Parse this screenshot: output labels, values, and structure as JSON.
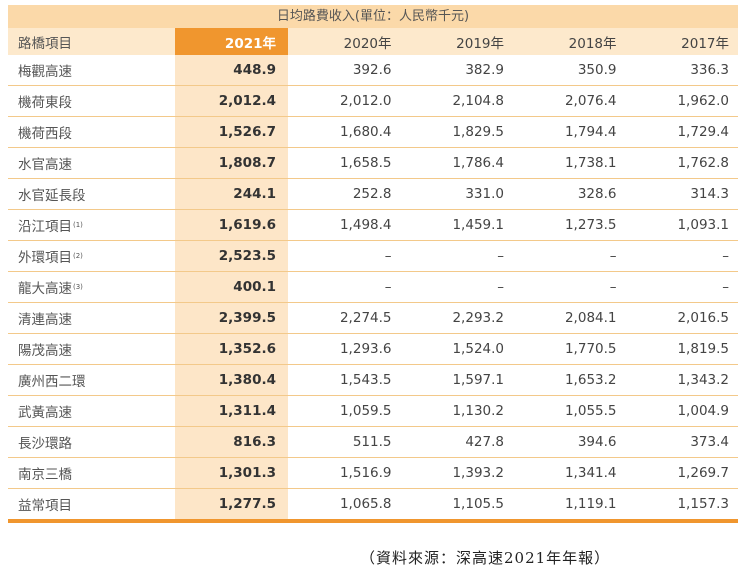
{
  "table": {
    "title": "日均路費收入(單位：人民幣千元)",
    "headers": [
      "路橋項目",
      "2021年",
      "2020年",
      "2019年",
      "2018年",
      "2017年"
    ],
    "rows": [
      {
        "name": "梅觀高速",
        "note": "",
        "values": [
          "448.9",
          "392.6",
          "382.9",
          "350.9",
          "336.3"
        ]
      },
      {
        "name": "機荷東段",
        "note": "",
        "values": [
          "2,012.4",
          "2,012.0",
          "2,104.8",
          "2,076.4",
          "1,962.0"
        ]
      },
      {
        "name": "機荷西段",
        "note": "",
        "values": [
          "1,526.7",
          "1,680.4",
          "1,829.5",
          "1,794.4",
          "1,729.4"
        ]
      },
      {
        "name": "水官高速",
        "note": "",
        "values": [
          "1,808.7",
          "1,658.5",
          "1,786.4",
          "1,738.1",
          "1,762.8"
        ]
      },
      {
        "name": "水官延長段",
        "note": "",
        "values": [
          "244.1",
          "252.8",
          "331.0",
          "328.6",
          "314.3"
        ]
      },
      {
        "name": "沿江項目",
        "note": "(1)",
        "values": [
          "1,619.6",
          "1,498.4",
          "1,459.1",
          "1,273.5",
          "1,093.1"
        ]
      },
      {
        "name": "外環項目",
        "note": "(2)",
        "values": [
          "2,523.5",
          "–",
          "–",
          "–",
          "–"
        ]
      },
      {
        "name": "龍大高速",
        "note": "(3)",
        "values": [
          "400.1",
          "–",
          "–",
          "–",
          "–"
        ]
      },
      {
        "name": "清連高速",
        "note": "",
        "values": [
          "2,399.5",
          "2,274.5",
          "2,293.2",
          "2,084.1",
          "2,016.5"
        ]
      },
      {
        "name": "陽茂高速",
        "note": "",
        "values": [
          "1,352.6",
          "1,293.6",
          "1,524.0",
          "1,770.5",
          "1,819.5"
        ]
      },
      {
        "name": "廣州西二環",
        "note": "",
        "values": [
          "1,380.4",
          "1,543.5",
          "1,597.1",
          "1,653.2",
          "1,343.2"
        ]
      },
      {
        "name": "武黃高速",
        "note": "",
        "values": [
          "1,311.4",
          "1,059.5",
          "1,130.2",
          "1,055.5",
          "1,004.9"
        ]
      },
      {
        "name": "長沙環路",
        "note": "",
        "values": [
          "816.3",
          "511.5",
          "427.8",
          "394.6",
          "373.4"
        ]
      },
      {
        "name": "南京三橋",
        "note": "",
        "values": [
          "1,301.3",
          "1,516.9",
          "1,393.2",
          "1,341.4",
          "1,269.7"
        ]
      },
      {
        "name": "益常項目",
        "note": "",
        "values": [
          "1,277.5",
          "1,065.8",
          "1,105.5",
          "1,119.1",
          "1,157.3"
        ]
      }
    ]
  },
  "source": "（資料來源：深高速2021年年報）",
  "colors": {
    "accent": "#f0962e",
    "highlight_col": "#fde6c8",
    "title_band": "#fbd9a9",
    "header_row": "#fde9cc",
    "row_rule": "#f3c98a"
  }
}
